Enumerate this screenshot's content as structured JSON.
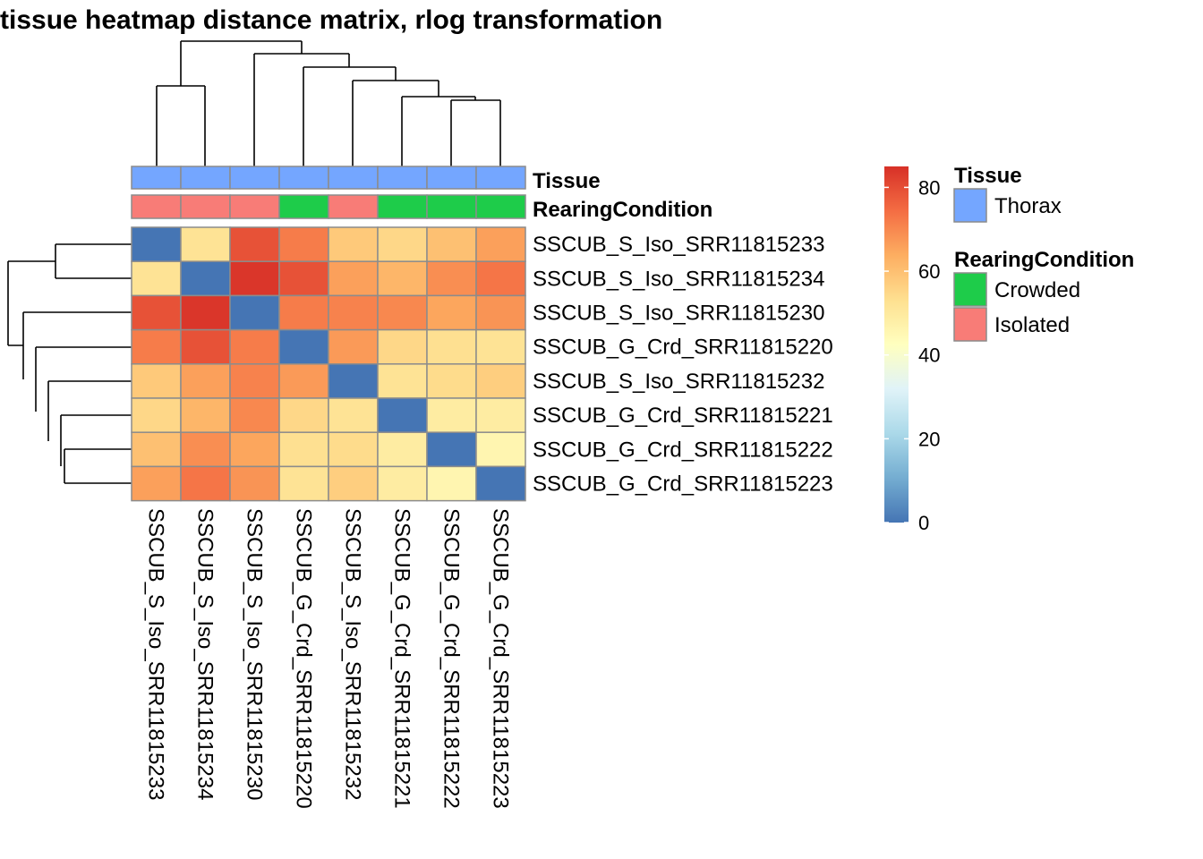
{
  "chart_data": {
    "type": "heatmap",
    "title": "tissue heatmap distance matrix, rlog transformation",
    "row_labels": [
      "SSCUB_S_Iso_SRR11815233",
      "SSCUB_S_Iso_SRR11815234",
      "SSCUB_S_Iso_SRR11815230",
      "SSCUB_G_Crd_SRR11815220",
      "SSCUB_S_Iso_SRR11815232",
      "SSCUB_G_Crd_SRR11815221",
      "SSCUB_G_Crd_SRR11815222",
      "SSCUB_G_Crd_SRR11815223"
    ],
    "col_labels": [
      "SSCUB_S_Iso_SRR11815233",
      "SSCUB_S_Iso_SRR11815234",
      "SSCUB_S_Iso_SRR11815230",
      "SSCUB_G_Crd_SRR11815220",
      "SSCUB_S_Iso_SRR11815232",
      "SSCUB_G_Crd_SRR11815221",
      "SSCUB_G_Crd_SRR11815222",
      "SSCUB_G_Crd_SRR11815223"
    ],
    "values": [
      [
        0,
        52,
        79,
        72,
        58,
        55,
        60,
        66
      ],
      [
        52,
        0,
        84,
        79,
        66,
        62,
        69,
        73
      ],
      [
        79,
        84,
        0,
        72,
        71,
        70,
        65,
        68
      ],
      [
        72,
        79,
        72,
        0,
        67,
        55,
        53,
        52
      ],
      [
        58,
        66,
        71,
        67,
        0,
        52,
        54,
        57
      ],
      [
        55,
        62,
        70,
        55,
        52,
        0,
        49,
        49
      ],
      [
        60,
        69,
        65,
        53,
        54,
        49,
        0,
        46
      ],
      [
        66,
        73,
        68,
        52,
        57,
        49,
        46,
        0
      ]
    ],
    "annotations": {
      "names": [
        "Tissue",
        "RearingCondition"
      ],
      "Tissue": [
        "Thorax",
        "Thorax",
        "Thorax",
        "Thorax",
        "Thorax",
        "Thorax",
        "Thorax",
        "Thorax"
      ],
      "RearingCondition": [
        "Isolated",
        "Isolated",
        "Isolated",
        "Crowded",
        "Isolated",
        "Crowded",
        "Crowded",
        "Crowded"
      ]
    },
    "legends": [
      {
        "title": "Tissue",
        "items": [
          {
            "label": "Thorax",
            "color": "#74a6ff"
          }
        ]
      },
      {
        "title": "RearingCondition",
        "items": [
          {
            "label": "Crowded",
            "color": "#1ecc4a"
          },
          {
            "label": "Isolated",
            "color": "#f87c77"
          }
        ]
      }
    ],
    "colorbar": {
      "range": [
        0,
        85
      ],
      "ticks": [
        0,
        20,
        40,
        60,
        80
      ],
      "colors": [
        "#4575b4",
        "#74add1",
        "#abd9e9",
        "#e0f3f8",
        "#ffffbf",
        "#fee090",
        "#fdae61",
        "#f46d43",
        "#d73027"
      ]
    },
    "dendrogram": "hierarchical clustering shown on rows (left) and columns (top)",
    "grid": true
  }
}
